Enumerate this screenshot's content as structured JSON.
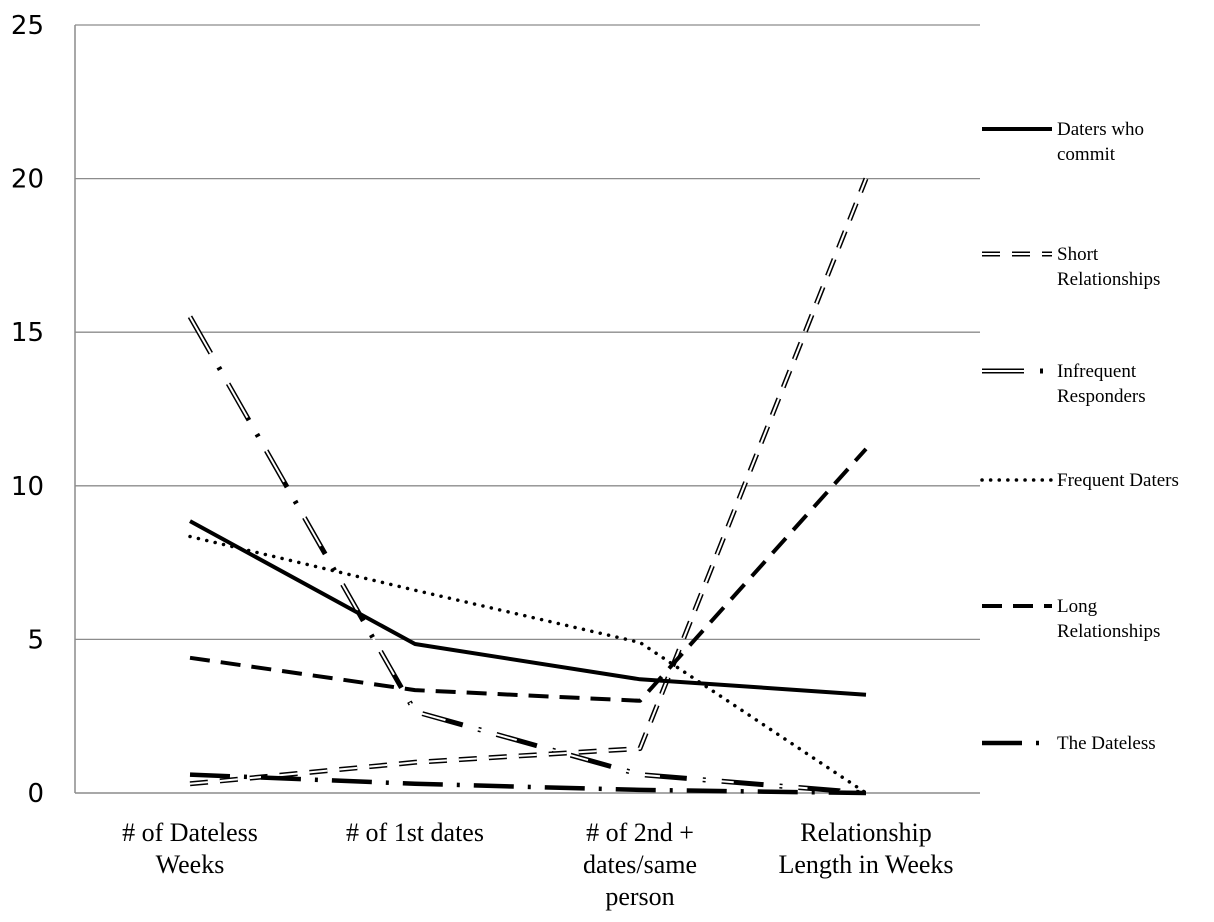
{
  "chart_data": {
    "type": "line",
    "title": "",
    "xlabel": "",
    "ylabel": "",
    "ylim": [
      0,
      25
    ],
    "yticks": [
      "0",
      "5",
      "10",
      "15",
      "20",
      "25"
    ],
    "grid": true,
    "legend_position": "right",
    "categories": [
      [
        "# of Dateless",
        "Weeks"
      ],
      [
        "# of 1st dates"
      ],
      [
        "# of 2nd +",
        "dates/same",
        "person"
      ],
      [
        "Relationship",
        "Length in Weeks"
      ]
    ],
    "series": [
      {
        "name": [
          "Daters who",
          "commit"
        ],
        "values": [
          8.85,
          4.85,
          3.7,
          3.2
        ],
        "style": "solid"
      },
      {
        "name": [
          "Short",
          "Relationships"
        ],
        "values": [
          0.3,
          1.0,
          1.45,
          20.0
        ],
        "style": "hollow-dash"
      },
      {
        "name": [
          "Infrequent",
          "Responders"
        ],
        "values": [
          15.5,
          2.65,
          0.6,
          0.0
        ],
        "style": "hollow-longdash-dot"
      },
      {
        "name": [
          "Frequent Daters"
        ],
        "values": [
          8.35,
          6.6,
          4.9,
          0.0
        ],
        "style": "dotted"
      },
      {
        "name": [
          "Long",
          "Relationships"
        ],
        "values": [
          4.4,
          3.35,
          3.0,
          11.2
        ],
        "style": "dashed"
      },
      {
        "name": [
          "The Dateless"
        ],
        "values": [
          0.6,
          0.3,
          0.1,
          0.0
        ],
        "style": "longdash-dot"
      }
    ]
  }
}
